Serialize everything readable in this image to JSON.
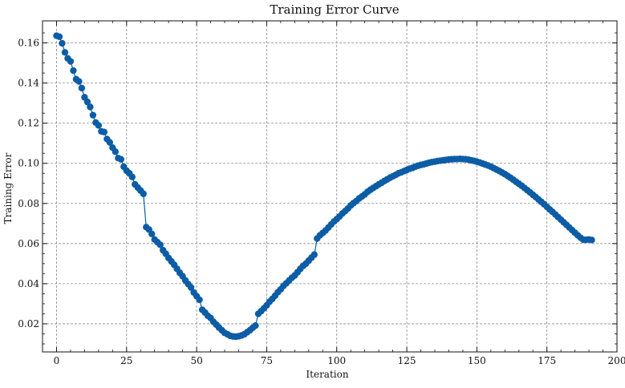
{
  "chart_data": {
    "type": "line",
    "title": "Training Error Curve",
    "xlabel": "Iteration",
    "ylabel": "Training Error",
    "xlim": [
      -5,
      200
    ],
    "ylim": [
      0.006,
      0.171
    ],
    "xticks": [
      0,
      25,
      50,
      75,
      100,
      125,
      150,
      175,
      200
    ],
    "yticks": [
      0.02,
      0.04,
      0.06,
      0.08,
      0.1,
      0.12,
      0.14,
      0.16
    ],
    "ytick_labels": [
      "0.02",
      "0.04",
      "0.06",
      "0.08",
      "0.10",
      "0.12",
      "0.14",
      "0.16"
    ],
    "grid": true,
    "series": [
      {
        "color": "#0C5DA5",
        "marker": "circle",
        "points": [
          [
            0,
            0.1636
          ],
          [
            1,
            0.1631
          ],
          [
            2,
            0.1598
          ],
          [
            3,
            0.1553
          ],
          [
            4,
            0.1523
          ],
          [
            5,
            0.1508
          ],
          [
            6,
            0.1462
          ],
          [
            7,
            0.1419
          ],
          [
            8,
            0.1408
          ],
          [
            9,
            0.1375
          ],
          [
            10,
            0.1329
          ],
          [
            11,
            0.1306
          ],
          [
            12,
            0.1281
          ],
          [
            13,
            0.124
          ],
          [
            14,
            0.1203
          ],
          [
            15,
            0.1189
          ],
          [
            16,
            0.1159
          ],
          [
            17,
            0.1156
          ],
          [
            18,
            0.1121
          ],
          [
            19,
            0.1104
          ],
          [
            20,
            0.1078
          ],
          [
            21,
            0.1058
          ],
          [
            22,
            0.1026
          ],
          [
            23,
            0.102
          ],
          [
            24,
            0.0983
          ],
          [
            25,
            0.0963
          ],
          [
            26,
            0.095
          ],
          [
            27,
            0.0932
          ],
          [
            28,
            0.0895
          ],
          [
            29,
            0.0879
          ],
          [
            30,
            0.0864
          ],
          [
            31,
            0.0848
          ],
          [
            32,
            0.0682
          ],
          [
            33,
            0.067
          ],
          [
            34,
            0.0648
          ],
          [
            35,
            0.062
          ],
          [
            36,
            0.0607
          ],
          [
            37,
            0.0594
          ],
          [
            38,
            0.0567
          ],
          [
            39,
            0.0549
          ],
          [
            40,
            0.0528
          ],
          [
            41,
            0.0511
          ],
          [
            42,
            0.0494
          ],
          [
            43,
            0.0474
          ],
          [
            44,
            0.0454
          ],
          [
            45,
            0.0437
          ],
          [
            46,
            0.0416
          ],
          [
            47,
            0.0398
          ],
          [
            48,
            0.0381
          ],
          [
            49,
            0.0356
          ],
          [
            50,
            0.0338
          ],
          [
            51,
            0.032
          ],
          [
            52,
            0.027
          ],
          [
            53,
            0.0256
          ],
          [
            54,
            0.024
          ],
          [
            55,
            0.0229
          ],
          [
            56,
            0.021
          ],
          [
            57,
            0.0196
          ],
          [
            58,
            0.0181
          ],
          [
            59,
            0.0168
          ],
          [
            60,
            0.0155
          ],
          [
            61,
            0.0148
          ],
          [
            62,
            0.014
          ],
          [
            63,
            0.0137
          ],
          [
            64,
            0.0136
          ],
          [
            65,
            0.0138
          ],
          [
            66,
            0.0142
          ],
          [
            67,
            0.0148
          ],
          [
            68,
            0.0158
          ],
          [
            69,
            0.0168
          ],
          [
            70,
            0.018
          ],
          [
            71,
            0.0191
          ],
          [
            72,
            0.025
          ],
          [
            73,
            0.0263
          ],
          [
            74,
            0.0277
          ],
          [
            75,
            0.0292
          ],
          [
            76,
            0.031
          ],
          [
            77,
            0.0324
          ],
          [
            78,
            0.034
          ],
          [
            79,
            0.0358
          ],
          [
            80,
            0.0372
          ],
          [
            81,
            0.0389
          ],
          [
            82,
            0.0402
          ],
          [
            83,
            0.0416
          ],
          [
            84,
            0.043
          ],
          [
            85,
            0.0441
          ],
          [
            86,
            0.0457
          ],
          [
            87,
            0.0474
          ],
          [
            88,
            0.0489
          ],
          [
            89,
            0.05
          ],
          [
            90,
            0.0515
          ],
          [
            91,
            0.053
          ],
          [
            92,
            0.0545
          ],
          [
            93,
            0.0625
          ],
          [
            94,
            0.0641
          ],
          [
            95,
            0.0653
          ],
          [
            96,
            0.0665
          ],
          [
            97,
            0.068
          ],
          [
            98,
            0.0695
          ],
          [
            99,
            0.071
          ],
          [
            100,
            0.0722
          ],
          [
            101,
            0.0735
          ],
          [
            102,
            0.075
          ],
          [
            103,
            0.0762
          ],
          [
            104,
            0.0775
          ],
          [
            105,
            0.079
          ],
          [
            106,
            0.0802
          ],
          [
            107,
            0.0812
          ],
          [
            108,
            0.0825
          ],
          [
            109,
            0.0835
          ],
          [
            110,
            0.0845
          ],
          [
            111,
            0.0858
          ],
          [
            112,
            0.0868
          ],
          [
            113,
            0.0877
          ],
          [
            114,
            0.0886
          ],
          [
            115,
            0.0895
          ],
          [
            116,
            0.0903
          ],
          [
            117,
            0.0912
          ],
          [
            118,
            0.092
          ],
          [
            119,
            0.0928
          ],
          [
            120,
            0.0935
          ],
          [
            121,
            0.0942
          ],
          [
            122,
            0.095
          ],
          [
            123,
            0.0955
          ],
          [
            124,
            0.0961
          ],
          [
            125,
            0.0967
          ],
          [
            126,
            0.0973
          ],
          [
            127,
            0.0977
          ],
          [
            128,
            0.0983
          ],
          [
            129,
            0.0988
          ],
          [
            130,
            0.0992
          ],
          [
            131,
            0.0995
          ],
          [
            132,
            0.0999
          ],
          [
            133,
            0.1003
          ],
          [
            134,
            0.1006
          ],
          [
            135,
            0.1008
          ],
          [
            136,
            0.1011
          ],
          [
            137,
            0.1013
          ],
          [
            138,
            0.1015
          ],
          [
            139,
            0.1017
          ],
          [
            140,
            0.1019
          ],
          [
            141,
            0.102
          ],
          [
            142,
            0.1021
          ],
          [
            143,
            0.1021
          ],
          [
            144,
            0.1022
          ],
          [
            145,
            0.1021
          ],
          [
            146,
            0.102
          ],
          [
            147,
            0.1018
          ],
          [
            148,
            0.1015
          ],
          [
            149,
            0.1012
          ],
          [
            150,
            0.1008
          ],
          [
            151,
            0.1004
          ],
          [
            152,
            0.0999
          ],
          [
            153,
            0.0994
          ],
          [
            154,
            0.0989
          ],
          [
            155,
            0.0983
          ],
          [
            156,
            0.0976
          ],
          [
            157,
            0.0969
          ],
          [
            158,
            0.0962
          ],
          [
            159,
            0.0954
          ],
          [
            160,
            0.0946
          ],
          [
            161,
            0.0937
          ],
          [
            162,
            0.0928
          ],
          [
            163,
            0.0918
          ],
          [
            164,
            0.0908
          ],
          [
            165,
            0.0898
          ],
          [
            166,
            0.0888
          ],
          [
            167,
            0.0877
          ],
          [
            168,
            0.0866
          ],
          [
            169,
            0.0855
          ],
          [
            170,
            0.0843
          ],
          [
            171,
            0.0832
          ],
          [
            172,
            0.082
          ],
          [
            173,
            0.0808
          ],
          [
            174,
            0.0796
          ],
          [
            175,
            0.0783
          ],
          [
            176,
            0.077
          ],
          [
            177,
            0.0758
          ],
          [
            178,
            0.0745
          ],
          [
            179,
            0.0732
          ],
          [
            180,
            0.0719
          ],
          [
            181,
            0.0706
          ],
          [
            182,
            0.0693
          ],
          [
            183,
            0.068
          ],
          [
            184,
            0.0667
          ],
          [
            185,
            0.0654
          ],
          [
            186,
            0.0641
          ],
          [
            187,
            0.0629
          ],
          [
            188,
            0.0619
          ],
          [
            189,
            0.0619
          ],
          [
            190,
            0.062
          ],
          [
            191,
            0.0618
          ]
        ]
      }
    ]
  }
}
